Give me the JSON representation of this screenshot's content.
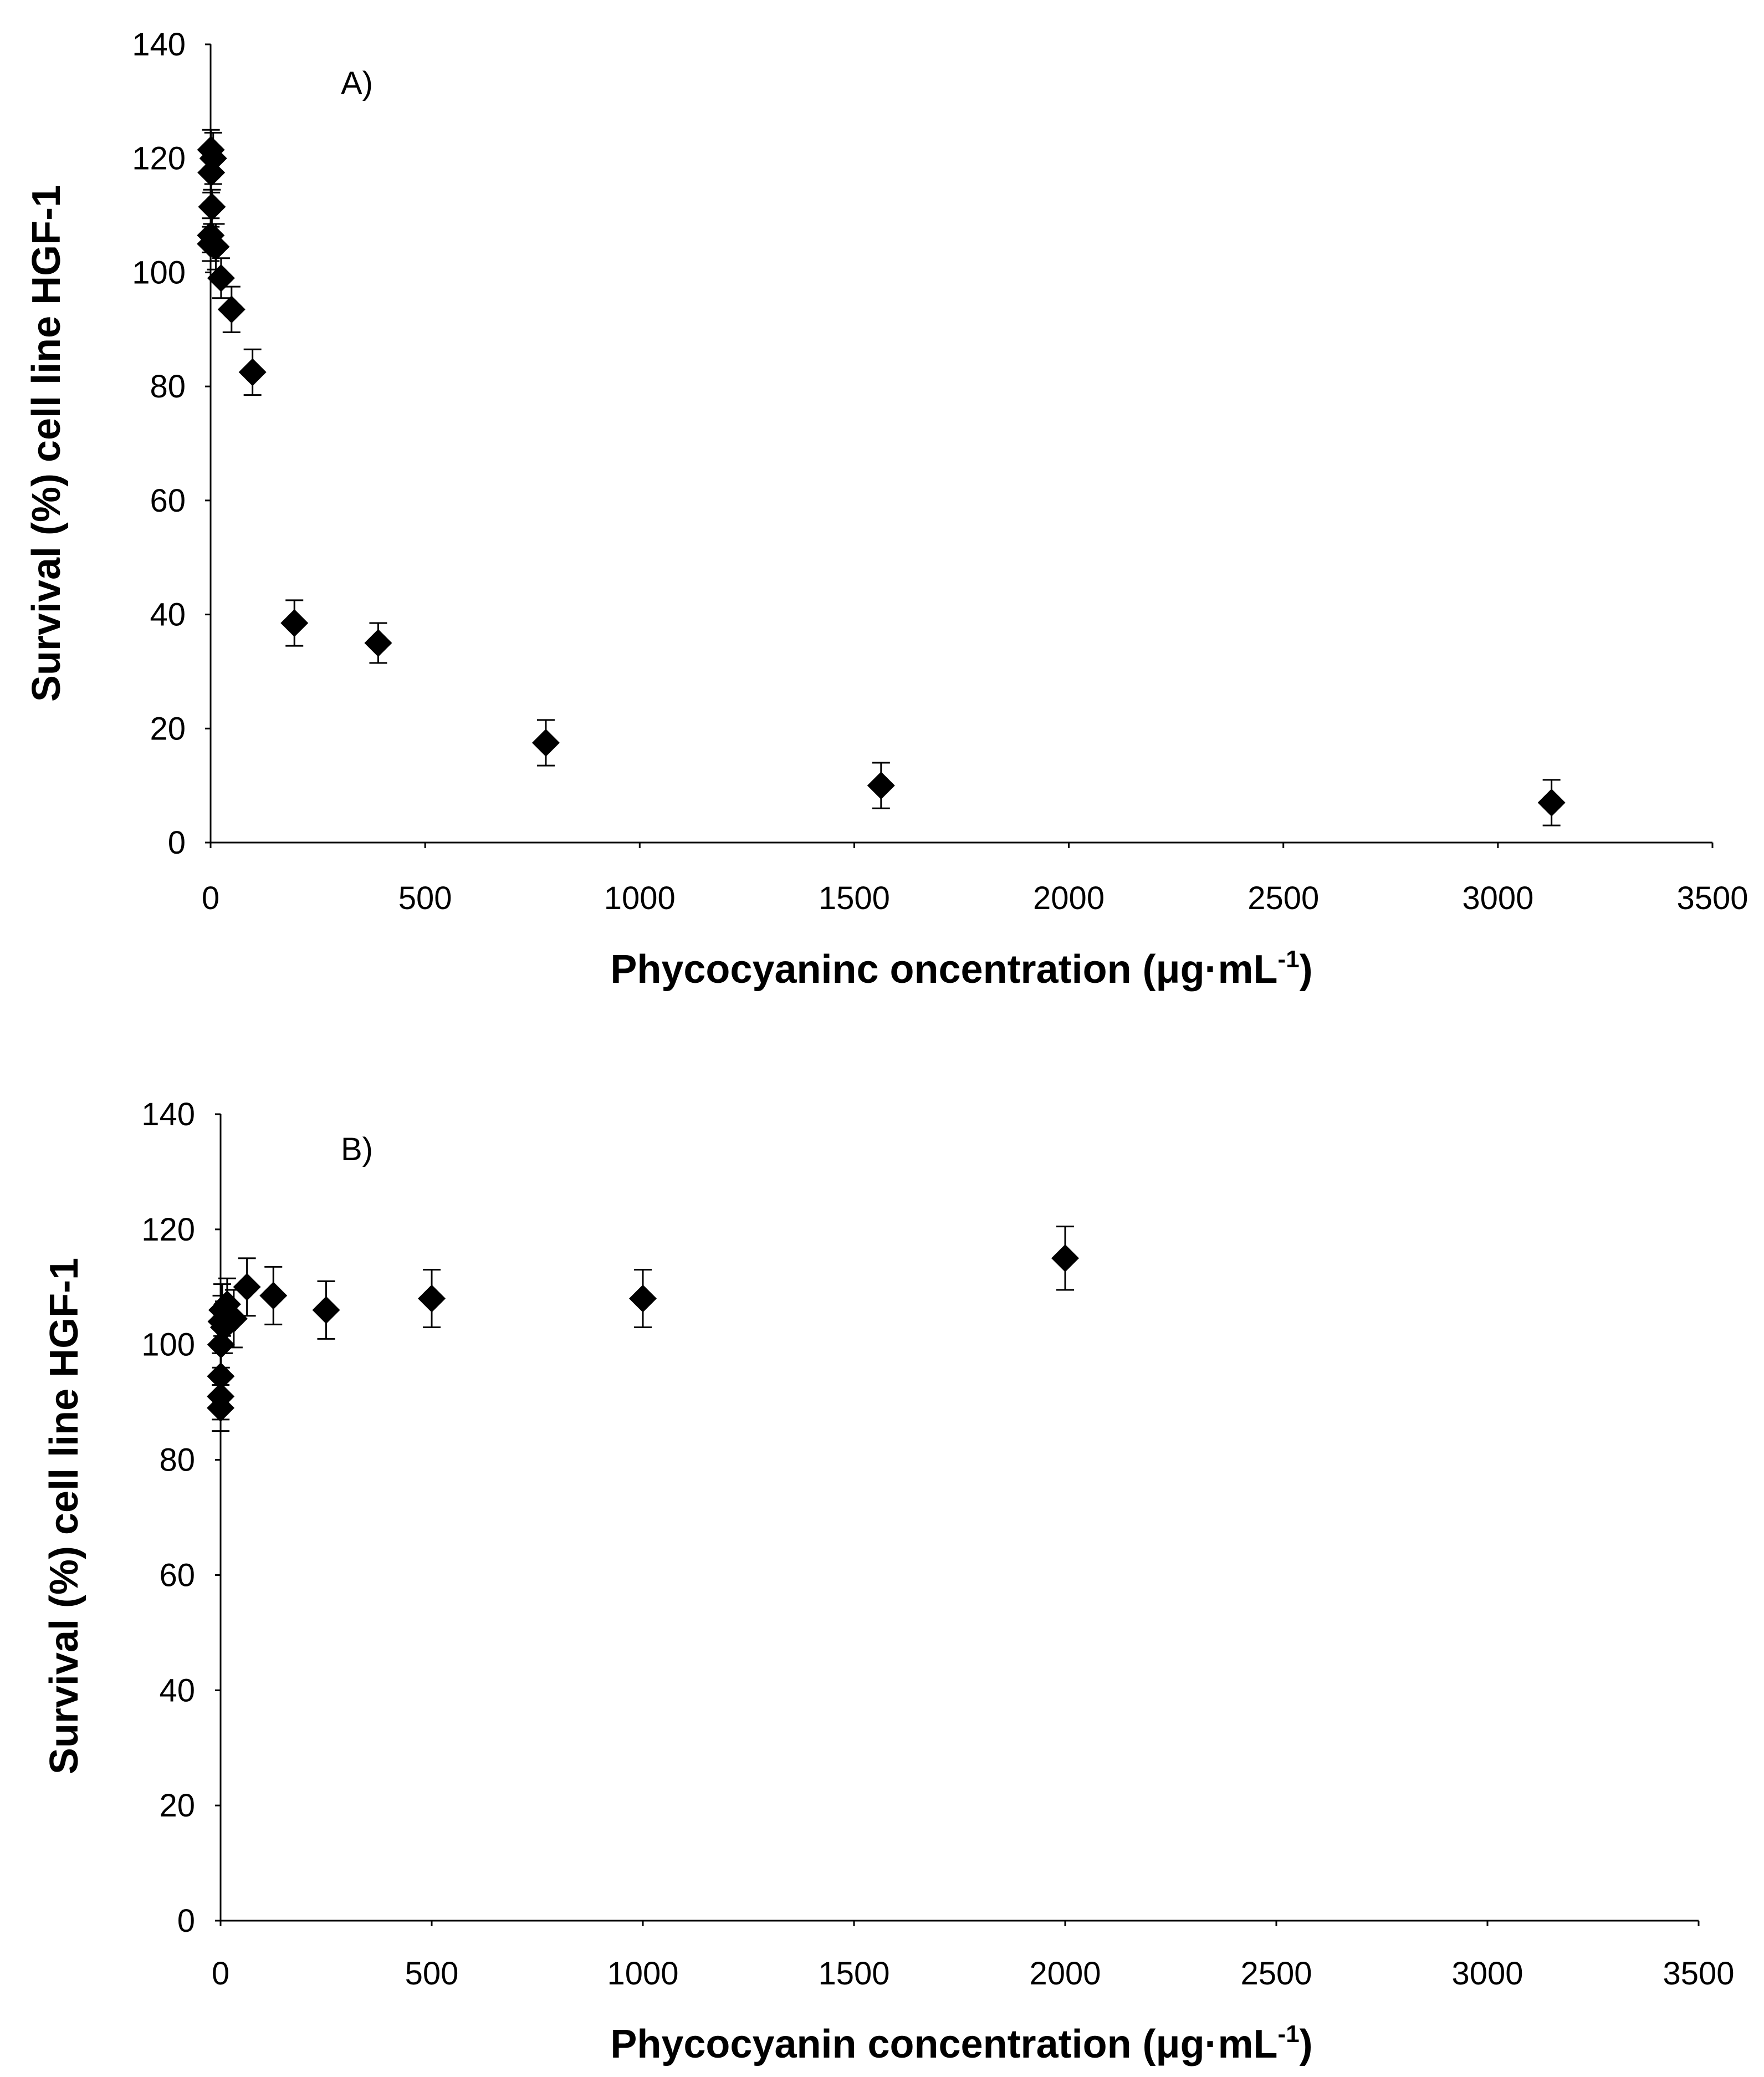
{
  "chart_data": [
    {
      "type": "scatter",
      "panel_label": "A)",
      "title": "",
      "xlabel": "Phycocyaninc oncentration (μg·mL",
      "xlabel_sup": "-1",
      "xlabel_close": ")",
      "ylabel": "Survival (%) cell line HGF-1",
      "xlim": [
        0,
        3500
      ],
      "ylim": [
        0,
        140
      ],
      "xticks": [
        "0",
        "500",
        "1000",
        "1500",
        "2000",
        "2500",
        "3000",
        "3500"
      ],
      "yticks": [
        "0",
        "20",
        "40",
        "60",
        "80",
        "100",
        "120",
        "140"
      ],
      "grid": false,
      "legend": "none",
      "color": "#000000",
      "marker": "diamond",
      "points": [
        {
          "x": 0.2,
          "y": 105.0,
          "err": 3.0
        },
        {
          "x": 0.4,
          "y": 106.5,
          "err": 3.0
        },
        {
          "x": 0.8,
          "y": 121.5,
          "err": 3.5
        },
        {
          "x": 1.5,
          "y": 117.5,
          "err": 3.5
        },
        {
          "x": 3.1,
          "y": 111.5,
          "err": 3.0
        },
        {
          "x": 6.1,
          "y": 120.0,
          "err": 4.5
        },
        {
          "x": 12.2,
          "y": 104.5,
          "err": 4.0
        },
        {
          "x": 24.4,
          "y": 99.0,
          "err": 3.5
        },
        {
          "x": 48.8,
          "y": 93.5,
          "err": 4.0
        },
        {
          "x": 97.7,
          "y": 82.5,
          "err": 4.0
        },
        {
          "x": 195.3,
          "y": 38.5,
          "err": 4.0
        },
        {
          "x": 390.6,
          "y": 35.0,
          "err": 3.5
        },
        {
          "x": 781.3,
          "y": 17.5,
          "err": 4.0
        },
        {
          "x": 1562.5,
          "y": 10.0,
          "err": 4.0
        },
        {
          "x": 3125.0,
          "y": 7.0,
          "err": 4.0
        }
      ]
    },
    {
      "type": "scatter",
      "panel_label": "B)",
      "title": "",
      "xlabel": "Phycocyanin concentration (μg·mL",
      "xlabel_sup": "-1",
      "xlabel_close": ")",
      "ylabel": "Survival (%) cell line HGF-1",
      "xlim": [
        0,
        3500
      ],
      "ylim": [
        0,
        140
      ],
      "xticks": [
        "0",
        "500",
        "1000",
        "1500",
        "2000",
        "2500",
        "3000",
        "3500"
      ],
      "yticks": [
        "0",
        "20",
        "40",
        "60",
        "80",
        "100",
        "120",
        "140"
      ],
      "grid": false,
      "legend": "none",
      "color": "#000000",
      "marker": "diamond",
      "points": [
        {
          "x": 0.1,
          "y": 89.0,
          "err": 4.0
        },
        {
          "x": 0.2,
          "y": 91.0,
          "err": 4.0
        },
        {
          "x": 0.5,
          "y": 94.5,
          "err": 4.0
        },
        {
          "x": 1.0,
          "y": 100.0,
          "err": 4.0
        },
        {
          "x": 2.0,
          "y": 104.0,
          "err": 4.5
        },
        {
          "x": 3.9,
          "y": 106.0,
          "err": 4.5
        },
        {
          "x": 7.8,
          "y": 103.0,
          "err": 4.5
        },
        {
          "x": 15.6,
          "y": 107.0,
          "err": 4.5
        },
        {
          "x": 31.3,
          "y": 104.5,
          "err": 5.0
        },
        {
          "x": 62.5,
          "y": 110.0,
          "err": 5.0
        },
        {
          "x": 125.0,
          "y": 108.5,
          "err": 5.0
        },
        {
          "x": 250.0,
          "y": 106.0,
          "err": 5.0
        },
        {
          "x": 500.0,
          "y": 108.0,
          "err": 5.0
        },
        {
          "x": 1000.0,
          "y": 108.0,
          "err": 5.0
        },
        {
          "x": 2000.0,
          "y": 115.0,
          "err": 5.5
        }
      ]
    }
  ]
}
